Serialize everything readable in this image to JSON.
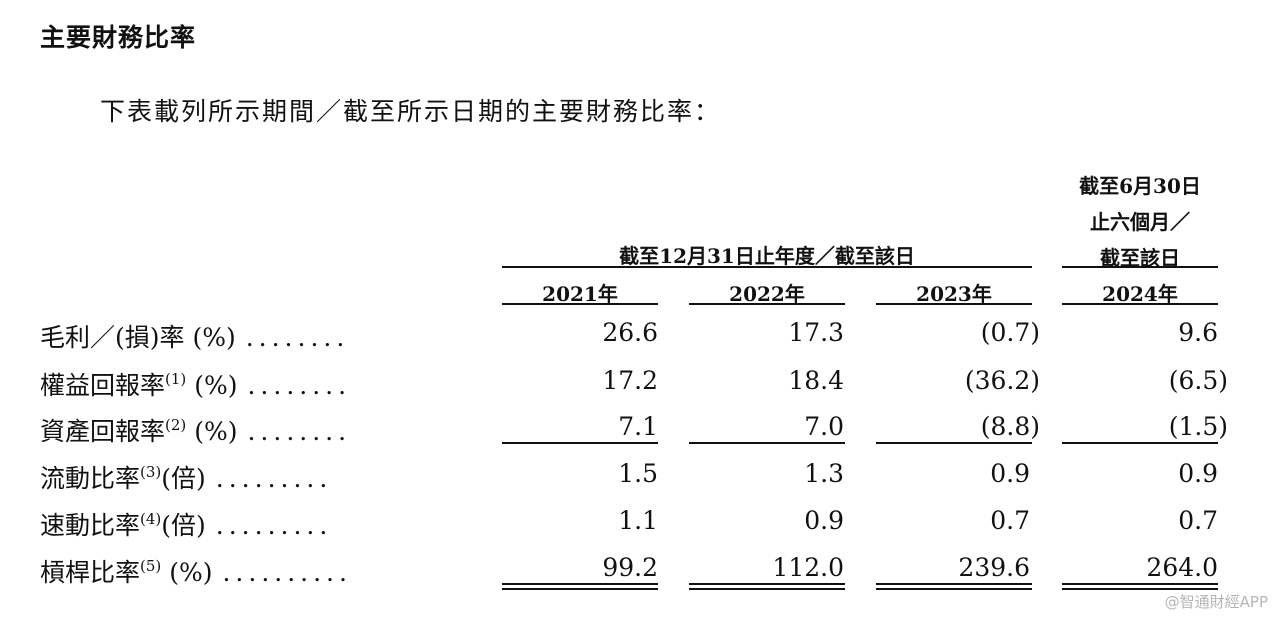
{
  "heading": "主要財務比率",
  "intro": "下表載列所示期間／截至所示日期的主要財務比率：",
  "group_header": "截至12月31日止年度／截至該日",
  "h2024": {
    "line1": "截至6月30日",
    "line2": "止六個月／",
    "line3": "截至該日"
  },
  "years": [
    "2021年",
    "2022年",
    "2023年",
    "2024年"
  ],
  "rows": [
    {
      "label": "毛利／(損)率 (%)",
      "note": "",
      "suffix": "",
      "dots": "........",
      "values": [
        "26.6",
        "17.3",
        "(0.7)",
        "9.6"
      ]
    },
    {
      "label": "權益回報率",
      "note": "(1)",
      "suffix": " (%)",
      "dots": "........",
      "values": [
        "17.2",
        "18.4",
        "(36.2)",
        "(6.5)"
      ]
    },
    {
      "label": "資產回報率",
      "note": "(2)",
      "suffix": " (%)",
      "dots": "........",
      "values": [
        "7.1",
        "7.0",
        "(8.8)",
        "(1.5)"
      ]
    },
    {
      "label": "流動比率",
      "note": "(3)",
      "suffix": "(倍)",
      "dots": ".........",
      "values": [
        "1.5",
        "1.3",
        "0.9",
        "0.9"
      ]
    },
    {
      "label": "速動比率",
      "note": "(4)",
      "suffix": "(倍)",
      "dots": ".........",
      "values": [
        "1.1",
        "0.9",
        "0.7",
        "0.7"
      ]
    },
    {
      "label": "槓桿比率",
      "note": "(5)",
      "suffix": " (%)",
      "dots": "..........",
      "values": [
        "99.2",
        "112.0",
        "239.6",
        "264.0"
      ]
    }
  ],
  "watermark": "@智通財經APP"
}
